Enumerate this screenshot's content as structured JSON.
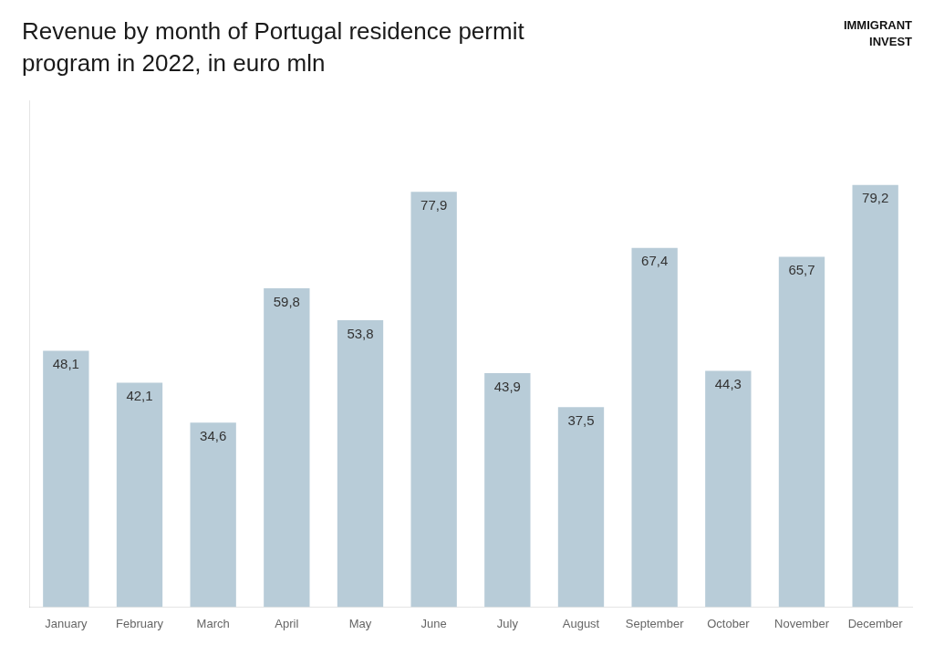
{
  "chart_data": {
    "type": "bar",
    "title": "Revenue by month of Portugal residence permit",
    "subtitle": "program in 2022, in euro mln",
    "annotations": [
      "IMMIGRANT",
      "INVEST"
    ],
    "categories": [
      "January",
      "February",
      "March",
      "April",
      "May",
      "June",
      "July",
      "August",
      "September",
      "October",
      "November",
      "December"
    ],
    "values": [
      48.1,
      42.1,
      34.6,
      59.8,
      53.8,
      77.9,
      43.9,
      37.5,
      67.4,
      44.3,
      65.7,
      79.2
    ],
    "value_labels": [
      "48,1",
      "42,1",
      "34,6",
      "59,8",
      "53,8",
      "77,9",
      "43,9",
      "37,5",
      "67,4",
      "44,3",
      "65,7",
      "79,2"
    ],
    "data_labels": true,
    "color": "#b8ccd8",
    "ylim": [
      0,
      95
    ],
    "tick_labels": "x",
    "grid": false
  }
}
